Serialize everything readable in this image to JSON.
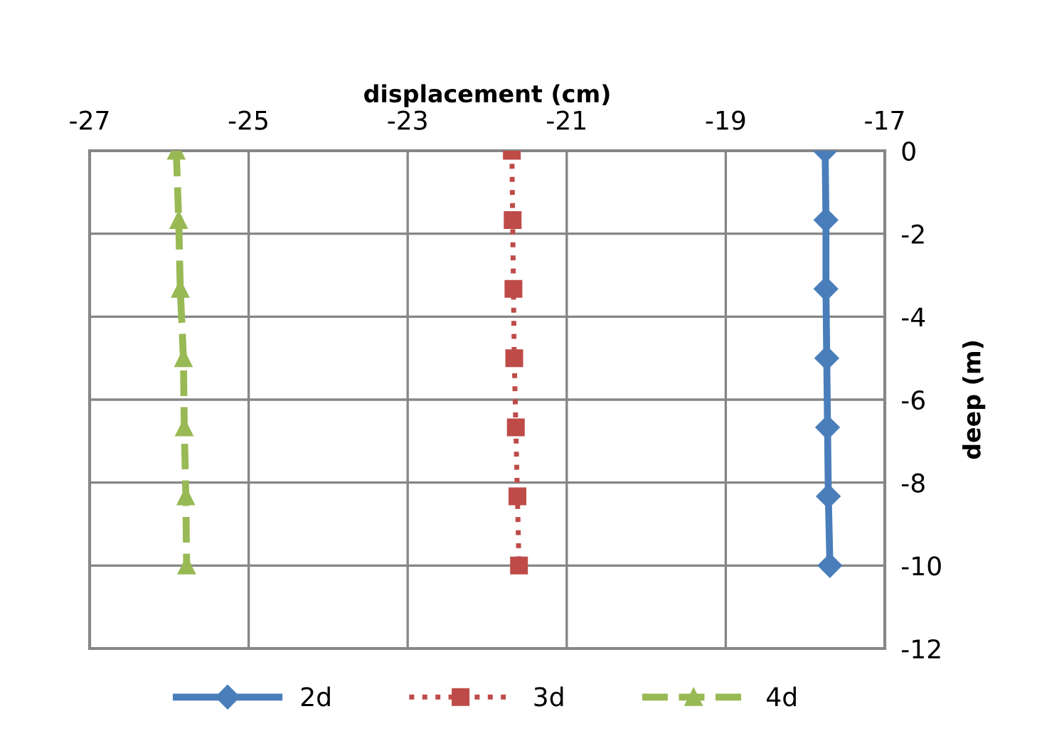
{
  "chart_data": {
    "type": "line",
    "xlabel": "displacement (cm)",
    "ylabel": "deep (m)",
    "xlim": [
      -27,
      -17
    ],
    "xticks": [
      -27,
      -25,
      -23,
      -21,
      -19,
      -17
    ],
    "ylim": [
      -12,
      0
    ],
    "yticks": [
      0,
      -2,
      -4,
      -6,
      -8,
      -10,
      -12
    ],
    "grid": true,
    "legend": "bottom",
    "series": [
      {
        "name": "2d",
        "color": "#4a7ebb",
        "marker": "diamond",
        "line_style": "solid",
        "x": [
          -17.75,
          -17.74,
          -17.74,
          -17.73,
          -17.72,
          -17.71,
          -17.69
        ],
        "values": [
          0,
          -1.67,
          -3.33,
          -5,
          -6.67,
          -8.33,
          -10
        ]
      },
      {
        "name": "3d",
        "color": "#be4b48",
        "marker": "square",
        "line_style": "dotted",
        "x": [
          -21.69,
          -21.68,
          -21.67,
          -21.66,
          -21.64,
          -21.62,
          -21.6
        ],
        "values": [
          0,
          -1.67,
          -3.33,
          -5,
          -6.67,
          -8.33,
          -10
        ]
      },
      {
        "name": "4d",
        "color": "#98b954",
        "marker": "triangle",
        "line_style": "dashed",
        "x": [
          -25.91,
          -25.88,
          -25.86,
          -25.82,
          -25.81,
          -25.79,
          -25.78
        ],
        "values": [
          0,
          -1.67,
          -3.33,
          -5,
          -6.67,
          -8.33,
          -10
        ]
      }
    ]
  }
}
